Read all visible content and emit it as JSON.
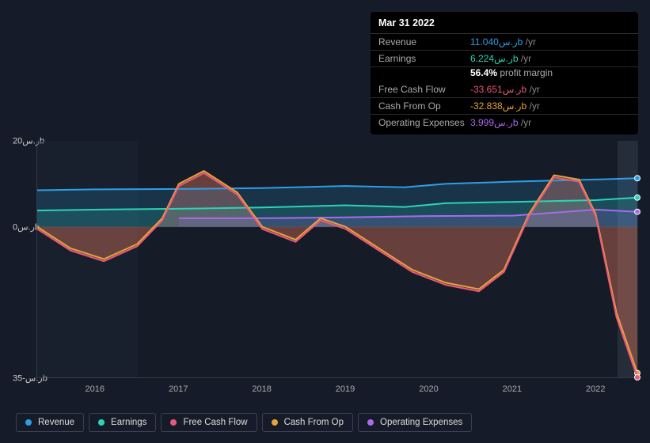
{
  "tooltip": {
    "date": "Mar 31 2022",
    "rows": [
      {
        "label": "Revenue",
        "value": "11.040",
        "unit": "ر.سb",
        "suffix": " /yr",
        "color": "#2f9ee6"
      },
      {
        "label": "Earnings",
        "value": "6.224",
        "unit": "ر.سb",
        "suffix": " /yr",
        "color": "#2bd4b6"
      },
      {
        "label": "Free Cash Flow",
        "value": "-33.651",
        "unit": "ر.سb",
        "suffix": " /yr",
        "color": "#e85a7a"
      },
      {
        "label": "Cash From Op",
        "value": "-32.838",
        "unit": "ر.سb",
        "suffix": " /yr",
        "color": "#e8a33a"
      },
      {
        "label": "Operating Expenses",
        "value": "3.999",
        "unit": "ر.سb",
        "suffix": " /yr",
        "color": "#a96aed"
      }
    ],
    "profit_margin_pct": "56.4%",
    "profit_margin_label": "profit margin",
    "suffix_color": "#888"
  },
  "chart": {
    "type": "area-line",
    "background_color": "#151b28",
    "plot_bg": "rgba(30,40,55,0.4)",
    "ylim": [
      -35,
      20
    ],
    "y_ticks": [
      {
        "v": 20,
        "label": "ر.س20b"
      },
      {
        "v": 0,
        "label": "ر.س0b"
      },
      {
        "v": -35,
        "label": "ر.س-35b"
      }
    ],
    "x_years": [
      2016,
      2017,
      2018,
      2019,
      2020,
      2021,
      2022
    ],
    "x_domain": [
      2015.3,
      2022.5
    ],
    "highlight_x": [
      2022.25,
      2022.5
    ],
    "highlight2_x": [
      2016.5,
      2022.25
    ],
    "series": [
      {
        "name": "Revenue",
        "color": "#2f9ee6",
        "fill": "rgba(47,158,230,0.18)",
        "width": 2,
        "points": [
          [
            2015.3,
            8.5
          ],
          [
            2016,
            8.7
          ],
          [
            2017,
            8.8
          ],
          [
            2018,
            9.0
          ],
          [
            2019,
            9.5
          ],
          [
            2019.7,
            9.2
          ],
          [
            2020.2,
            10.0
          ],
          [
            2021,
            10.5
          ],
          [
            2022,
            11.0
          ],
          [
            2022.5,
            11.3
          ]
        ]
      },
      {
        "name": "Earnings",
        "color": "#2bd4b6",
        "fill": "rgba(43,212,182,0.16)",
        "width": 2,
        "points": [
          [
            2015.3,
            3.8
          ],
          [
            2016,
            4.0
          ],
          [
            2017,
            4.2
          ],
          [
            2018,
            4.5
          ],
          [
            2019,
            5.0
          ],
          [
            2019.7,
            4.6
          ],
          [
            2020.2,
            5.5
          ],
          [
            2021,
            5.8
          ],
          [
            2022,
            6.2
          ],
          [
            2022.5,
            6.8
          ]
        ]
      },
      {
        "name": "Operating Expenses",
        "color": "#a96aed",
        "fill": "rgba(169,106,237,0.18)",
        "width": 2,
        "points": [
          [
            2017.0,
            2.0
          ],
          [
            2018,
            2.0
          ],
          [
            2019,
            2.2
          ],
          [
            2020,
            2.5
          ],
          [
            2021,
            2.6
          ],
          [
            2022,
            4.0
          ],
          [
            2022.5,
            3.5
          ]
        ]
      },
      {
        "name": "Cash From Op",
        "color": "#e8a33a",
        "fill": "rgba(232,163,58,0.22)",
        "width": 2,
        "points": [
          [
            2015.3,
            0
          ],
          [
            2015.7,
            -5
          ],
          [
            2016.1,
            -7.5
          ],
          [
            2016.5,
            -4
          ],
          [
            2016.8,
            2
          ],
          [
            2017.0,
            10
          ],
          [
            2017.3,
            13
          ],
          [
            2017.7,
            8
          ],
          [
            2018.0,
            0
          ],
          [
            2018.4,
            -3
          ],
          [
            2018.7,
            2
          ],
          [
            2019.0,
            0
          ],
          [
            2019.4,
            -5
          ],
          [
            2019.8,
            -10
          ],
          [
            2020.2,
            -13
          ],
          [
            2020.6,
            -14.5
          ],
          [
            2020.9,
            -10
          ],
          [
            2021.2,
            3
          ],
          [
            2021.5,
            12
          ],
          [
            2021.8,
            11
          ],
          [
            2022.0,
            3
          ],
          [
            2022.25,
            -20
          ],
          [
            2022.5,
            -34
          ]
        ]
      },
      {
        "name": "Free Cash Flow",
        "color": "#e85a7a",
        "fill": "rgba(232,90,122,0.22)",
        "width": 2,
        "points": [
          [
            2015.3,
            -0.5
          ],
          [
            2015.7,
            -5.5
          ],
          [
            2016.1,
            -8.0
          ],
          [
            2016.5,
            -4.5
          ],
          [
            2016.8,
            1.5
          ],
          [
            2017.0,
            9.5
          ],
          [
            2017.3,
            12.5
          ],
          [
            2017.7,
            7.5
          ],
          [
            2018.0,
            -0.5
          ],
          [
            2018.4,
            -3.5
          ],
          [
            2018.7,
            1.5
          ],
          [
            2019.0,
            -0.5
          ],
          [
            2019.4,
            -5.5
          ],
          [
            2019.8,
            -10.5
          ],
          [
            2020.2,
            -13.5
          ],
          [
            2020.6,
            -15.0
          ],
          [
            2020.9,
            -10.5
          ],
          [
            2021.2,
            2.5
          ],
          [
            2021.5,
            11.5
          ],
          [
            2021.8,
            10.5
          ],
          [
            2022.0,
            2.5
          ],
          [
            2022.25,
            -21
          ],
          [
            2022.5,
            -35
          ]
        ]
      }
    ]
  },
  "legend": [
    {
      "label": "Revenue",
      "color": "#2f9ee6"
    },
    {
      "label": "Earnings",
      "color": "#2bd4b6"
    },
    {
      "label": "Free Cash Flow",
      "color": "#e85a7a"
    },
    {
      "label": "Cash From Op",
      "color": "#e8a33a"
    },
    {
      "label": "Operating Expenses",
      "color": "#a96aed"
    }
  ]
}
